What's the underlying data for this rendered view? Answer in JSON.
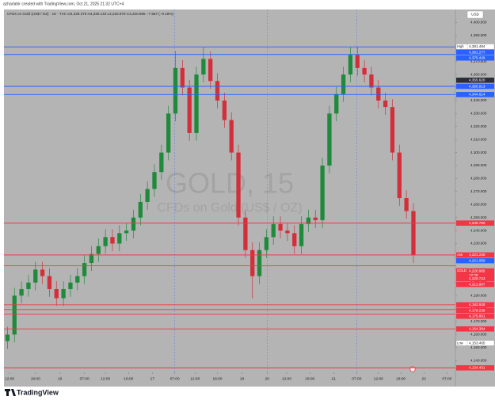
{
  "chart_data": {
    "type": "candlestick",
    "credit": "azharlahir created with TradingView.com, Oct 21, 2025 21:32 UTC+4",
    "legend": "CFDs on Gold (US$ / OZ) · 15 · TVC  O4,228.270 H4,330.140 L4,220.879 C4,220.965 −7.587 (−0.18%)",
    "watermark_title": "GOLD, 15",
    "watermark_subtitle": "CFDs on Gold (US$ / OZ)",
    "currency": "USD",
    "brand": "TradingView",
    "up_color": "#1f8a3c",
    "down_color": "#d32f3a",
    "opens": [
      4155,
      4160,
      4190,
      4195,
      4200,
      4210,
      4205,
      4195,
      4188,
      4195,
      4200,
      4205,
      4215,
      4222,
      4228,
      4235,
      4230,
      4238,
      4240,
      4250,
      4262,
      4272,
      4285,
      4300,
      4330,
      4365,
      4350,
      4315,
      4360,
      4372,
      4355,
      4340,
      4325,
      4300,
      4250,
      4225,
      4205,
      4225,
      4235,
      4245,
      4240,
      4238,
      4228,
      4245,
      4250,
      4248,
      4290,
      4330,
      4345,
      4360,
      4375,
      4365,
      4360,
      4350,
      4340,
      4335,
      4300,
      4265,
      4255
    ],
    "highs": [
      4166,
      4196,
      4201,
      4206,
      4216,
      4216,
      4211,
      4201,
      4201,
      4206,
      4211,
      4221,
      4228,
      4234,
      4241,
      4241,
      4244,
      4246,
      4256,
      4268,
      4278,
      4291,
      4306,
      4336,
      4378,
      4371,
      4356,
      4366,
      4381,
      4378,
      4361,
      4346,
      4331,
      4306,
      4256,
      4231,
      4231,
      4241,
      4251,
      4251,
      4246,
      4244,
      4251,
      4256,
      4256,
      4296,
      4336,
      4351,
      4366,
      4381,
      4381,
      4371,
      4366,
      4356,
      4346,
      4341,
      4306,
      4271,
      4261
    ],
    "lows": [
      4149,
      4154,
      4184,
      4189,
      4194,
      4199,
      4189,
      4182,
      4182,
      4189,
      4194,
      4199,
      4209,
      4216,
      4222,
      4224,
      4224,
      4232,
      4234,
      4244,
      4256,
      4266,
      4279,
      4294,
      4324,
      4344,
      4309,
      4309,
      4354,
      4349,
      4334,
      4319,
      4294,
      4244,
      4219,
      4188,
      4199,
      4219,
      4229,
      4234,
      4232,
      4222,
      4222,
      4239,
      4242,
      4242,
      4284,
      4324,
      4339,
      4354,
      4359,
      4354,
      4344,
      4334,
      4329,
      4294,
      4259,
      4249,
      4215
    ],
    "closes": [
      4160,
      4190,
      4195,
      4200,
      4210,
      4205,
      4195,
      4188,
      4195,
      4200,
      4205,
      4215,
      4222,
      4228,
      4235,
      4230,
      4238,
      4240,
      4250,
      4262,
      4272,
      4285,
      4300,
      4330,
      4365,
      4350,
      4315,
      4360,
      4372,
      4355,
      4340,
      4325,
      4300,
      4250,
      4225,
      4205,
      4225,
      4235,
      4245,
      4240,
      4238,
      4228,
      4245,
      4250,
      4248,
      4290,
      4330,
      4345,
      4360,
      4375,
      4365,
      4360,
      4350,
      4340,
      4335,
      4300,
      4265,
      4255,
      4221
    ],
    "xlim": [
      -0.5,
      64
    ],
    "xticks": [
      {
        "value": 0.3,
        "label": "12:00"
      },
      {
        "value": 4.0,
        "label": "18:00"
      },
      {
        "value": 7.5,
        "label": "16"
      },
      {
        "value": 11.0,
        "label": "07:00"
      },
      {
        "value": 14.0,
        "label": "12:00"
      },
      {
        "value": 17.3,
        "label": "18:00"
      },
      {
        "value": 20.7,
        "label": "17"
      },
      {
        "value": 23.9,
        "label": "07:00"
      },
      {
        "value": 26.8,
        "label": "12:00"
      },
      {
        "value": 30.0,
        "label": "18:00"
      },
      {
        "value": 33.5,
        "label": "18"
      },
      {
        "value": 37.1,
        "label": "20"
      },
      {
        "value": 39.9,
        "label": "12:00"
      },
      {
        "value": 43.2,
        "label": "18:00"
      },
      {
        "value": 46.6,
        "label": "21"
      },
      {
        "value": 49.9,
        "label": "07:00"
      },
      {
        "value": 53.0,
        "label": "12:00"
      },
      {
        "value": 56.2,
        "label": "18:00"
      },
      {
        "value": 59.5,
        "label": "22"
      },
      {
        "value": 62.8,
        "label": "07:00"
      }
    ],
    "ylim": [
      4131,
      4410
    ],
    "yticks": [
      {
        "value": 4140,
        "label": "4,140.000"
      },
      {
        "value": 4150,
        "label": "4,150.000"
      },
      {
        "value": 4160,
        "label": "4,160.000"
      },
      {
        "value": 4170,
        "label": "4,170.000"
      },
      {
        "value": 4180,
        "label": "4,180.000"
      },
      {
        "value": 4190,
        "label": "4,190.000"
      },
      {
        "value": 4200,
        "label": "4,200.000"
      },
      {
        "value": 4210,
        "label": "4,210.000"
      },
      {
        "value": 4220,
        "label": "4,220.000"
      },
      {
        "value": 4230,
        "label": "4,230.000"
      },
      {
        "value": 4240,
        "label": "4,240.000"
      },
      {
        "value": 4250,
        "label": "4,250.000"
      },
      {
        "value": 4260,
        "label": "4,260.000"
      },
      {
        "value": 4270,
        "label": "4,270.000"
      },
      {
        "value": 4280,
        "label": "4,280.000"
      },
      {
        "value": 4290,
        "label": "4,290.000"
      },
      {
        "value": 4300,
        "label": "4,300.000"
      },
      {
        "value": 4310,
        "label": "4,310.000"
      },
      {
        "value": 4320,
        "label": "4,320.000"
      },
      {
        "value": 4330,
        "label": "4,330.000"
      },
      {
        "value": 4340,
        "label": "4,340.000"
      },
      {
        "value": 4350,
        "label": "4,350.000"
      },
      {
        "value": 4360,
        "label": "4,360.000"
      },
      {
        "value": 4370,
        "label": "4,370.000"
      },
      {
        "value": 4380,
        "label": "4,380.000"
      },
      {
        "value": 4390,
        "label": "4,390.000"
      },
      {
        "value": 4400,
        "label": "4,400.000"
      }
    ],
    "grid": false,
    "price_labels": [
      {
        "value": 4381.484,
        "label": "4,381.484",
        "tag": "High",
        "color": "#ffffff",
        "line": false
      },
      {
        "value": 4381.277,
        "label": "4,381.277",
        "color": "#2962ff",
        "line": true
      },
      {
        "value": 4375.429,
        "label": "4,375.429",
        "color": "#2962ff",
        "line": true
      },
      {
        "value": 4355.62,
        "label": "4,355.620",
        "color": "#2a2e39",
        "line": false
      },
      {
        "value": 4350.913,
        "label": "4,350.913",
        "color": "#2962ff",
        "line": true
      },
      {
        "value": 4344.614,
        "label": "4,344.614",
        "color": "#2962ff",
        "line": true
      },
      {
        "value": 4245.76,
        "label": "4,245.760",
        "color": "#f23645",
        "line": true
      },
      {
        "value": 4221.23,
        "label": "4,221.230",
        "tag": "Ask",
        "color": "#f23645",
        "line": true
      },
      {
        "value": 4221.05,
        "label": "4,221.050",
        "color": "#2962ff",
        "line": false
      },
      {
        "value": 4220.965,
        "label": "4,220.965",
        "tag": "GOLD",
        "countdown": "12:28",
        "color": "#f23645",
        "line": false
      },
      {
        "value": 4220.723,
        "label": "4,220.723",
        "color": "#f23645",
        "line": false
      },
      {
        "value": 4212.867,
        "label": "4,212.867",
        "color": "#f23645",
        "line": true
      },
      {
        "value": 4182.92,
        "label": "4,182.920",
        "color": "#f23645",
        "line": true
      },
      {
        "value": 4179.238,
        "label": "4,179.238",
        "color": "#f23645",
        "line": true
      },
      {
        "value": 4175.801,
        "label": "4,175.801",
        "color": "#f23645",
        "line": true
      },
      {
        "value": 4164.364,
        "label": "4,164.364",
        "color": "#f23645",
        "line": true
      },
      {
        "value": 4153.465,
        "label": "4,153.465",
        "tag": "Low",
        "color": "#ffffff",
        "line": false
      },
      {
        "value": 4134.431,
        "label": "4,134.431",
        "color": "#f23645",
        "line": true
      }
    ]
  }
}
